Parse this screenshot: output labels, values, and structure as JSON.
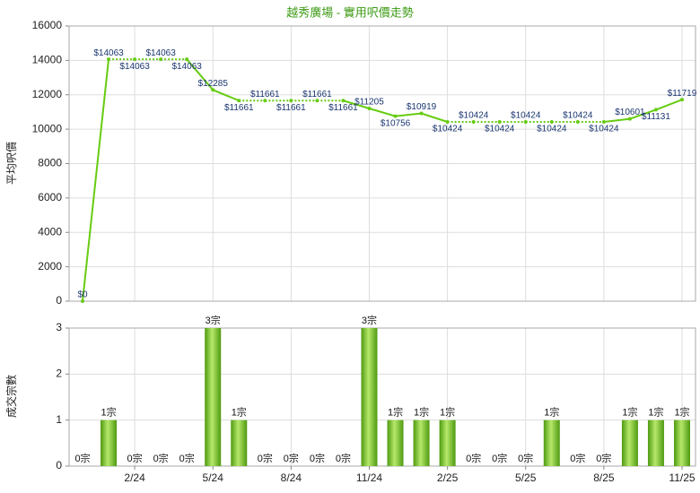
{
  "chart_data": [
    {
      "type": "line",
      "title": "越秀廣場 - 實用呎價走勢",
      "y_label": "平均呎價",
      "color": "#66cc11",
      "values": [
        0,
        14063,
        14063,
        14063,
        14063,
        12285,
        11661,
        11661,
        11661,
        11661,
        11661,
        11205,
        10756,
        10919,
        10424,
        10424,
        10424,
        10424,
        10424,
        10424,
        10424,
        10601,
        11131,
        11719
      ],
      "value_labels": [
        "$0",
        "$14063",
        "$14063",
        "$14063",
        "$14063",
        "$12285",
        "$11661",
        "$11661",
        "$11661",
        "$11661",
        "$11661",
        "$11205",
        "$10756",
        "$10919",
        "$10424",
        "$10424",
        "$10424",
        "$10424",
        "$10424",
        "$10424",
        "$10424",
        "$10601",
        "$11131",
        "$11719"
      ],
      "ylim": [
        0,
        16000
      ],
      "yticks": [
        0,
        2000,
        4000,
        6000,
        8000,
        10000,
        12000,
        14000,
        16000
      ],
      "grid": true
    },
    {
      "type": "bar",
      "y_label": "成交宗數",
      "color": "#77c322",
      "categories": [
        null,
        null,
        "2/24",
        null,
        null,
        "5/24",
        null,
        null,
        "8/24",
        null,
        null,
        "11/24",
        null,
        null,
        "2/25",
        null,
        null,
        "5/25",
        null,
        null,
        "8/25",
        null,
        null,
        "11/25"
      ],
      "values": [
        0,
        1,
        0,
        0,
        0,
        3,
        1,
        0,
        0,
        0,
        0,
        3,
        1,
        1,
        1,
        0,
        0,
        0,
        1,
        0,
        0,
        1,
        1,
        1
      ],
      "value_labels": [
        "0宗",
        "1宗",
        "0宗",
        "0宗",
        "0宗",
        "3宗",
        "1宗",
        "0宗",
        "0宗",
        "0宗",
        "0宗",
        "3宗",
        "1宗",
        "1宗",
        "1宗",
        "0宗",
        "0宗",
        "0宗",
        "1宗",
        "0宗",
        "0宗",
        "1宗",
        "1宗",
        "1宗"
      ],
      "ylim": [
        0,
        3
      ],
      "yticks": [
        0,
        1,
        2,
        3
      ],
      "grid": true
    }
  ]
}
